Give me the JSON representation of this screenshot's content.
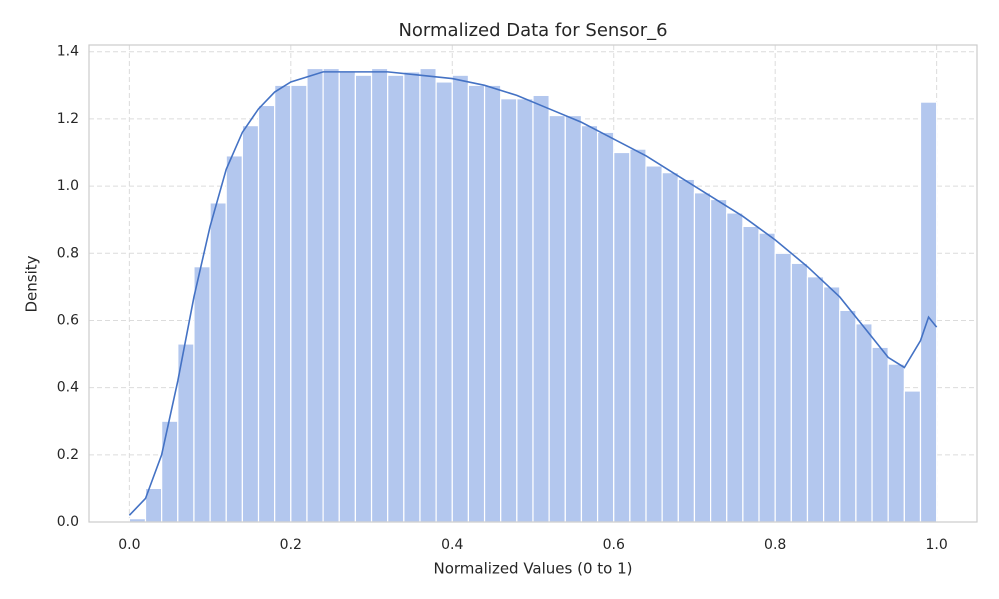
{
  "chart_data": {
    "type": "histogram",
    "title": "Normalized Data for Sensor_6",
    "xlabel": "Normalized Values (0 to 1)",
    "ylabel": "Density",
    "bins": [
      0,
      0.02,
      0.04,
      0.06,
      0.08,
      0.1,
      0.12,
      0.14,
      0.16,
      0.18,
      0.2,
      0.22,
      0.24,
      0.26,
      0.28,
      0.3,
      0.32,
      0.34,
      0.36,
      0.38,
      0.4,
      0.42,
      0.44,
      0.46,
      0.48,
      0.5,
      0.52,
      0.54,
      0.56,
      0.58,
      0.6,
      0.62,
      0.64,
      0.66,
      0.68,
      0.7,
      0.72,
      0.74,
      0.76,
      0.78,
      0.8,
      0.82,
      0.84,
      0.86,
      0.88,
      0.9,
      0.92,
      0.94,
      0.96,
      0.98,
      1.0
    ],
    "values": [
      0.01,
      0.1,
      0.3,
      0.53,
      0.76,
      0.95,
      1.09,
      1.18,
      1.24,
      1.3,
      1.3,
      1.35,
      1.35,
      1.34,
      1.33,
      1.35,
      1.33,
      1.34,
      1.35,
      1.31,
      1.33,
      1.3,
      1.3,
      1.26,
      1.26,
      1.27,
      1.21,
      1.21,
      1.18,
      1.16,
      1.1,
      1.11,
      1.06,
      1.04,
      1.02,
      0.98,
      0.96,
      0.92,
      0.88,
      0.86,
      0.8,
      0.77,
      0.73,
      0.7,
      0.63,
      0.59,
      0.52,
      0.47,
      0.39,
      1.25
    ],
    "color": "#b3c7ee",
    "kde": {
      "color": "#4472c4",
      "x": [
        0,
        0.02,
        0.04,
        0.06,
        0.08,
        0.1,
        0.12,
        0.14,
        0.16,
        0.18,
        0.2,
        0.24,
        0.28,
        0.32,
        0.36,
        0.4,
        0.44,
        0.48,
        0.52,
        0.56,
        0.6,
        0.64,
        0.68,
        0.72,
        0.76,
        0.8,
        0.84,
        0.88,
        0.91,
        0.94,
        0.96,
        0.98,
        0.99,
        1.0
      ],
      "values": [
        0.02,
        0.07,
        0.2,
        0.42,
        0.67,
        0.88,
        1.05,
        1.16,
        1.23,
        1.28,
        1.31,
        1.34,
        1.34,
        1.34,
        1.33,
        1.32,
        1.3,
        1.27,
        1.23,
        1.19,
        1.14,
        1.09,
        1.03,
        0.97,
        0.91,
        0.84,
        0.76,
        0.67,
        0.58,
        0.49,
        0.46,
        0.54,
        0.61,
        0.58
      ]
    },
    "xlim": [
      -0.05,
      1.05
    ],
    "ylim": [
      0,
      1.42
    ],
    "xticks": [
      {
        "value": 0,
        "label": "0.0"
      },
      0.2,
      0.4,
      0.6,
      0.8,
      {
        "value": 1,
        "label": "1.0"
      }
    ],
    "yticks": [
      {
        "value": 0,
        "label": "0.0"
      },
      0.2,
      0.4,
      0.6,
      0.8,
      {
        "value": 1,
        "label": "1.0"
      },
      1.2,
      1.4
    ],
    "grid": true
  }
}
